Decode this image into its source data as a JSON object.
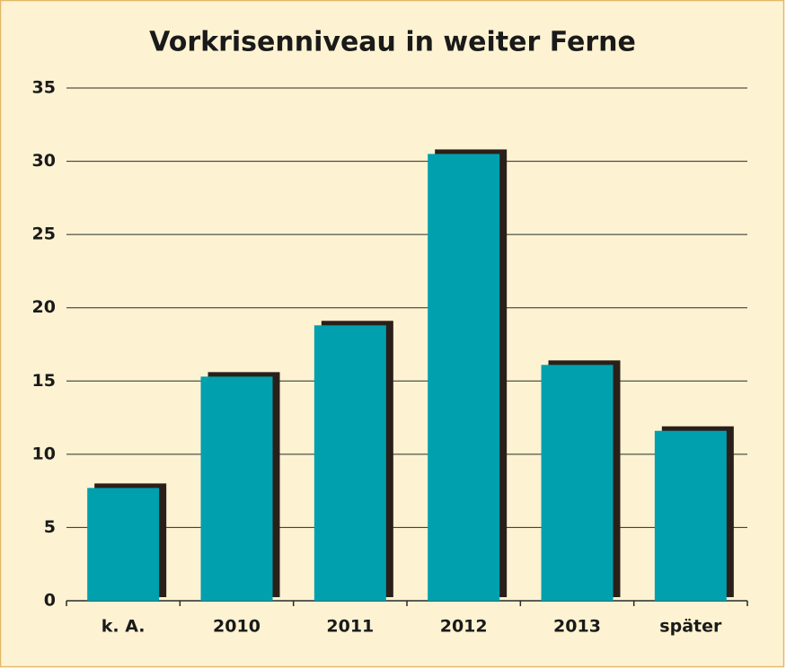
{
  "chart_data": {
    "type": "bar",
    "title": "Vorkrisenniveau in weiter Ferne",
    "categories": [
      "k. A.",
      "2010",
      "2011",
      "2012",
      "2013",
      "später"
    ],
    "values": [
      7.7,
      15.3,
      18.8,
      30.5,
      16.1,
      11.6
    ],
    "color": "#00a0ae",
    "ylim": [
      0,
      35
    ],
    "yticks": [
      0,
      5,
      10,
      15,
      20,
      25,
      30,
      35
    ],
    "grid": true
  }
}
